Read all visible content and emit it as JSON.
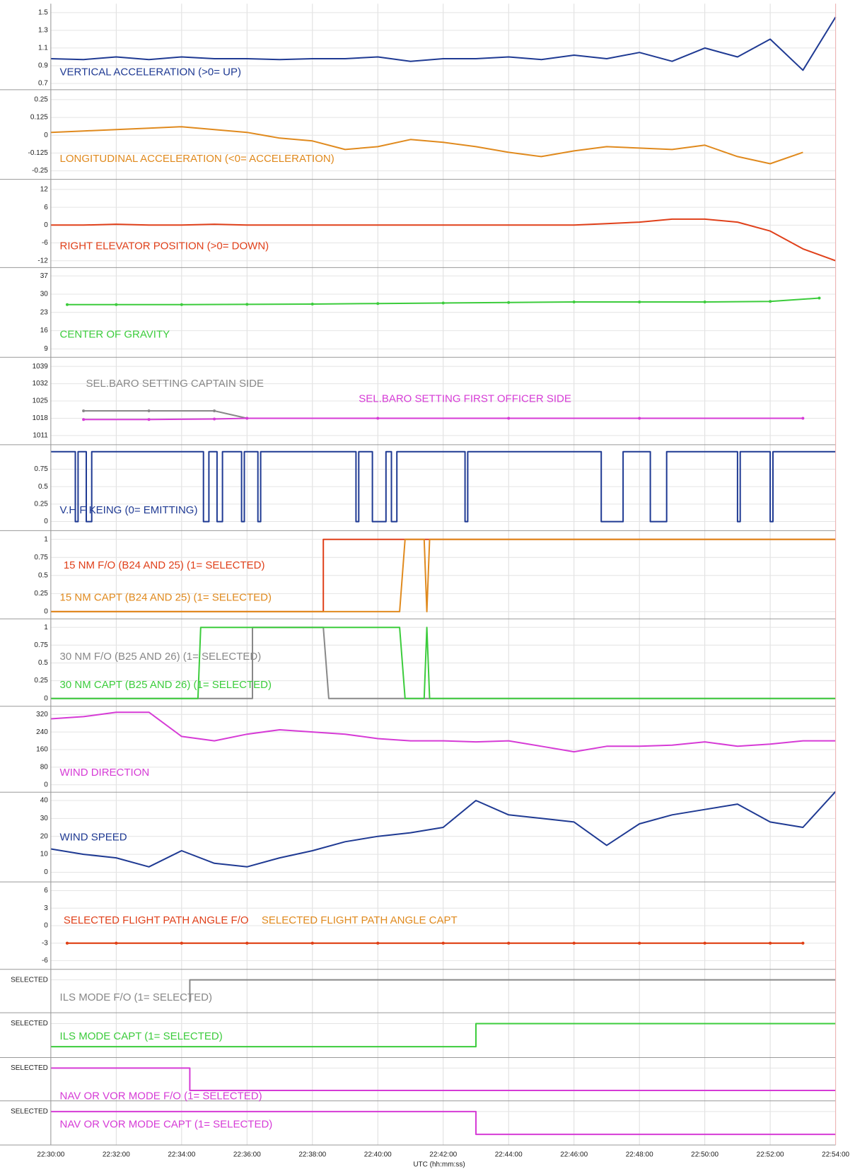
{
  "x_axis": {
    "label": "UTC (hh:mm:ss)",
    "xlim": [
      "22:30:00",
      "22:54:00"
    ],
    "xticks": [
      "22:30:00",
      "22:32:00",
      "22:34:00",
      "22:36:00",
      "22:38:00",
      "22:40:00",
      "22:42:00",
      "22:44:00",
      "22:46:00",
      "22:48:00",
      "22:50:00",
      "22:52:00",
      "22:54:00"
    ]
  },
  "chart_data": [
    {
      "type": "line",
      "ylim": [
        0.63,
        1.6
      ],
      "yticks": [
        0.7,
        0.9,
        1.1,
        1.3,
        1.5
      ],
      "grid": true,
      "x": [
        "22:30:00",
        "22:31:00",
        "22:32:00",
        "22:33:00",
        "22:34:00",
        "22:35:00",
        "22:36:00",
        "22:37:00",
        "22:38:00",
        "22:39:00",
        "22:40:00",
        "22:41:00",
        "22:42:00",
        "22:43:00",
        "22:44:00",
        "22:45:00",
        "22:46:00",
        "22:47:00",
        "22:48:00",
        "22:49:00",
        "22:50:00",
        "22:51:00",
        "22:52:00",
        "22:53:00",
        "22:54:00"
      ],
      "series": [
        {
          "name": "VERTICAL ACCELERATION (>0= UP)",
          "color": "#1f3a93",
          "values": [
            0.98,
            0.97,
            1.0,
            0.97,
            1.0,
            0.98,
            0.98,
            0.97,
            0.98,
            0.98,
            1.0,
            0.95,
            0.98,
            0.98,
            1.0,
            0.97,
            1.02,
            0.98,
            1.05,
            0.95,
            1.1,
            1.0,
            1.2,
            0.85,
            1.45
          ]
        }
      ]
    },
    {
      "type": "line",
      "ylim": [
        -0.31,
        0.32
      ],
      "yticks": [
        0.25,
        0.125,
        0,
        -0.125,
        -0.25
      ],
      "grid": true,
      "x": [
        "22:30:00",
        "22:31:00",
        "22:32:00",
        "22:33:00",
        "22:34:00",
        "22:35:00",
        "22:36:00",
        "22:37:00",
        "22:38:00",
        "22:39:00",
        "22:40:00",
        "22:41:00",
        "22:42:00",
        "22:43:00",
        "22:44:00",
        "22:45:00",
        "22:46:00",
        "22:47:00",
        "22:48:00",
        "22:49:00",
        "22:50:00",
        "22:51:00",
        "22:52:00",
        "22:53:00",
        "22:54:00"
      ],
      "series": [
        {
          "name": "LONGITUDINAL ACCELERATION (<0= ACCELERATION)",
          "color": "#e08a1e",
          "values": [
            0.02,
            0.03,
            0.04,
            0.05,
            0.06,
            0.04,
            0.02,
            -0.02,
            -0.04,
            -0.1,
            -0.08,
            -0.03,
            -0.05,
            -0.08,
            -0.12,
            -0.15,
            -0.11,
            -0.08,
            -0.09,
            -0.1,
            -0.07,
            -0.15,
            -0.2,
            -0.12,
            null
          ]
        }
      ]
    },
    {
      "type": "line",
      "ylim": [
        -14.3,
        15.4
      ],
      "yticks": [
        12,
        6,
        0,
        -6,
        -12
      ],
      "grid": true,
      "x": [
        "22:30:00",
        "22:31:00",
        "22:32:00",
        "22:33:00",
        "22:34:00",
        "22:35:00",
        "22:36:00",
        "22:37:00",
        "22:38:00",
        "22:39:00",
        "22:40:00",
        "22:41:00",
        "22:42:00",
        "22:43:00",
        "22:44:00",
        "22:45:00",
        "22:46:00",
        "22:47:00",
        "22:48:00",
        "22:49:00",
        "22:50:00",
        "22:51:00",
        "22:52:00",
        "22:53:00",
        "22:54:00"
      ],
      "series": [
        {
          "name": "RIGHT ELEVATOR POSITION (>0= DOWN)",
          "color": "#e0401a",
          "values": [
            0,
            0,
            0.3,
            0,
            0,
            0.3,
            0,
            0,
            0,
            0,
            0,
            0,
            0,
            0,
            0,
            0,
            0,
            0.5,
            1,
            2,
            2,
            1,
            -2,
            -8,
            -12
          ]
        }
      ]
    },
    {
      "type": "line",
      "markers": true,
      "ylim": [
        5.8,
        40.2
      ],
      "yticks": [
        37,
        30,
        23,
        16,
        9
      ],
      "grid": true,
      "x": [
        "22:30:30",
        "22:32:00",
        "22:34:00",
        "22:36:00",
        "22:38:00",
        "22:40:00",
        "22:42:00",
        "22:44:00",
        "22:46:00",
        "22:48:00",
        "22:50:00",
        "22:52:00",
        "22:53:30"
      ],
      "series": [
        {
          "name": "CENTER OF GRAVITY",
          "color": "#3ccc3c",
          "values": [
            26,
            26,
            26,
            26.1,
            26.2,
            26.4,
            26.6,
            26.8,
            27,
            27,
            27,
            27.2,
            28.5
          ]
        }
      ]
    },
    {
      "type": "line",
      "markers": true,
      "ylim": [
        1007.3,
        1042.7
      ],
      "yticks": [
        1039,
        1032,
        1025,
        1018,
        1011
      ],
      "grid": true,
      "x": [
        "22:31:00",
        "22:33:00",
        "22:35:00",
        "22:36:00",
        "22:40:00",
        "22:44:00",
        "22:48:00",
        "22:53:00"
      ],
      "series": [
        {
          "name": "SEL.BARO SETTING CAPTAIN SIDE",
          "color": "#888888",
          "values": [
            1021,
            1021,
            1021,
            1018,
            null,
            null,
            null,
            null
          ]
        },
        {
          "name": "SEL.BARO SETTING FIRST OFFICER SIDE",
          "color": "#d63bd6",
          "values": [
            1017.5,
            1017.5,
            1017.7,
            1018,
            1018,
            1018,
            1018,
            1018
          ]
        }
      ]
    },
    {
      "type": "line",
      "ylim": [
        -0.13,
        1.1
      ],
      "yticks": [
        0.75,
        0.5,
        0.25,
        0
      ],
      "grid": true,
      "x": [
        "22:30:00",
        "22:30:45",
        "22:30:45",
        "22:30:50",
        "22:30:50",
        "22:31:05",
        "22:31:05",
        "22:31:15",
        "22:31:15",
        "22:34:40",
        "22:34:40",
        "22:34:50",
        "22:34:50",
        "22:35:05",
        "22:35:05",
        "22:35:15",
        "22:35:15",
        "22:35:50",
        "22:35:50",
        "22:35:55",
        "22:35:55",
        "22:36:20",
        "22:36:20",
        "22:36:25",
        "22:36:25",
        "22:39:20",
        "22:39:20",
        "22:39:25",
        "22:39:25",
        "22:39:50",
        "22:39:50",
        "22:40:15",
        "22:40:15",
        "22:40:25",
        "22:40:25",
        "22:40:35",
        "22:40:35",
        "22:42:40",
        "22:42:40",
        "22:42:45",
        "22:42:45",
        "22:46:50",
        "22:46:50",
        "22:47:30",
        "22:47:30",
        "22:48:20",
        "22:48:20",
        "22:48:50",
        "22:48:50",
        "22:51:00",
        "22:51:00",
        "22:51:05",
        "22:51:05",
        "22:52:00",
        "22:52:00",
        "22:52:05",
        "22:52:05",
        "22:54:00"
      ],
      "series": [
        {
          "name": "V.H.F KEING (0= EMITTING)",
          "color": "#1f3a93",
          "values": [
            1,
            1,
            0,
            0,
            1,
            1,
            0,
            0,
            1,
            1,
            0,
            0,
            1,
            1,
            0,
            0,
            1,
            1,
            0,
            0,
            1,
            1,
            0,
            0,
            1,
            1,
            0,
            0,
            1,
            1,
            0,
            0,
            1,
            1,
            0,
            0,
            1,
            1,
            0,
            0,
            1,
            1,
            0,
            0,
            1,
            1,
            0,
            0,
            1,
            1,
            0,
            0,
            1,
            1,
            0,
            0,
            1,
            1
          ]
        }
      ]
    },
    {
      "type": "line",
      "ylim": [
        -0.1,
        1.12
      ],
      "yticks": [
        1,
        0.75,
        0.5,
        0.25,
        0
      ],
      "grid": true,
      "x": [
        "22:30:00",
        "22:38:20",
        "22:38:20",
        "22:40:40",
        "22:40:50",
        "22:41:25",
        "22:41:30",
        "22:41:35",
        "22:54:00"
      ],
      "series": [
        {
          "name": "15 NM F/O (B24 AND 25) (1= SELECTED)",
          "color": "#e0401a",
          "values": [
            0,
            0,
            1,
            1,
            1,
            1,
            1,
            1,
            1
          ]
        },
        {
          "name": "15 NM CAPT (B24 AND 25) (1= SELECTED)",
          "color": "#e08a1e",
          "values": [
            0,
            0,
            0,
            0,
            1,
            1,
            0,
            1,
            1
          ]
        }
      ]
    },
    {
      "type": "line",
      "ylim": [
        -0.11,
        1.12
      ],
      "yticks": [
        1,
        0.75,
        0.5,
        0.25,
        0
      ],
      "grid": true,
      "x": [
        "22:30:00",
        "22:34:30",
        "22:34:35",
        "22:36:10",
        "22:36:10",
        "22:38:20",
        "22:38:30",
        "22:40:40",
        "22:40:50",
        "22:41:25",
        "22:41:30",
        "22:41:35",
        "22:54:00"
      ],
      "series": [
        {
          "name": "30 NM F/O (B25 AND 26) (1= SELECTED)",
          "color": "#888888",
          "values": [
            0,
            0,
            0,
            0,
            1,
            1,
            0,
            0,
            0,
            0,
            0,
            0,
            0
          ]
        },
        {
          "name": "30 NM CAPT (B25 AND 26) (1= SELECTED)",
          "color": "#3ccc3c",
          "values": [
            0,
            0,
            1,
            1,
            1,
            1,
            1,
            1,
            0,
            0,
            1,
            0,
            0
          ]
        }
      ]
    },
    {
      "type": "line",
      "ylim": [
        -34,
        357
      ],
      "yticks": [
        320,
        240,
        160,
        80,
        0
      ],
      "grid": true,
      "x": [
        "22:30:00",
        "22:31:00",
        "22:32:00",
        "22:33:00",
        "22:34:00",
        "22:35:00",
        "22:36:00",
        "22:37:00",
        "22:38:00",
        "22:39:00",
        "22:40:00",
        "22:41:00",
        "22:42:00",
        "22:43:00",
        "22:44:00",
        "22:45:00",
        "22:46:00",
        "22:47:00",
        "22:48:00",
        "22:49:00",
        "22:50:00",
        "22:51:00",
        "22:52:00",
        "22:53:00",
        "22:54:00"
      ],
      "series": [
        {
          "name": "WIND DIRECTION",
          "color": "#d63bd6",
          "values": [
            300,
            310,
            330,
            330,
            220,
            200,
            230,
            250,
            240,
            230,
            210,
            200,
            200,
            195,
            200,
            175,
            150,
            175,
            175,
            180,
            195,
            175,
            185,
            200,
            200
          ]
        }
      ]
    },
    {
      "type": "line",
      "ylim": [
        -5.4,
        44.6
      ],
      "yticks": [
        40,
        30,
        20,
        10,
        0
      ],
      "grid": true,
      "x": [
        "22:30:00",
        "22:31:00",
        "22:32:00",
        "22:33:00",
        "22:34:00",
        "22:35:00",
        "22:36:00",
        "22:37:00",
        "22:38:00",
        "22:39:00",
        "22:40:00",
        "22:41:00",
        "22:42:00",
        "22:43:00",
        "22:44:00",
        "22:45:00",
        "22:46:00",
        "22:47:00",
        "22:48:00",
        "22:49:00",
        "22:50:00",
        "22:51:00",
        "22:52:00",
        "22:53:00",
        "22:54:00"
      ],
      "series": [
        {
          "name": "WIND SPEED",
          "color": "#1f3a93",
          "values": [
            13,
            10,
            8,
            3,
            12,
            5,
            3,
            8,
            12,
            17,
            20,
            22,
            25,
            40,
            32,
            30,
            28,
            15,
            27,
            32,
            35,
            38,
            28,
            25,
            45
          ]
        }
      ]
    },
    {
      "type": "line",
      "markers": true,
      "ylim": [
        -7.5,
        7.5
      ],
      "yticks": [
        6,
        3,
        0,
        -3,
        -6
      ],
      "grid": true,
      "x": [
        "22:30:30",
        "22:32:00",
        "22:34:00",
        "22:36:00",
        "22:38:00",
        "22:40:00",
        "22:42:00",
        "22:44:00",
        "22:46:00",
        "22:48:00",
        "22:50:00",
        "22:52:00",
        "22:53:00"
      ],
      "series": [
        {
          "name": "SELECTED FLIGHT PATH ANGLE CAPT",
          "color": "#e08a1e",
          "values": [
            -3,
            -3,
            -3,
            -3,
            -3,
            -3,
            -3,
            -3,
            -3,
            -3,
            -3,
            -3,
            -3
          ]
        },
        {
          "name": "SELECTED FLIGHT PATH ANGLE F/O",
          "color": "#e0401a",
          "values": [
            -3,
            -3,
            -3,
            -3,
            -3,
            -3,
            -3,
            -3,
            -3,
            -3,
            -3,
            -3,
            -3
          ]
        }
      ]
    },
    {
      "type": "line",
      "ylim": [
        -0.47,
        1.47
      ],
      "yticks": [
        {
          "value": 1,
          "label": "SELECTED"
        }
      ],
      "grid": true,
      "x": [
        "22:34:15",
        "22:34:15",
        "22:54:00"
      ],
      "series": [
        {
          "name": "ILS MODE F/O (1= SELECTED)",
          "color": "#888888",
          "values": [
            0,
            1,
            1
          ]
        }
      ]
    },
    {
      "type": "line",
      "ylim": [
        -0.47,
        1.47
      ],
      "yticks": [
        {
          "value": 1,
          "label": "SELECTED"
        }
      ],
      "grid": true,
      "x": [
        "22:30:00",
        "22:43:00",
        "22:43:00",
        "22:54:00"
      ],
      "series": [
        {
          "name": "ILS MODE CAPT (1= SELECTED)",
          "color": "#3ccc3c",
          "values": [
            0,
            0,
            1,
            1
          ]
        }
      ]
    },
    {
      "type": "line",
      "ylim": [
        -0.47,
        1.47
      ],
      "yticks": [
        {
          "value": 1,
          "label": "SELECTED"
        }
      ],
      "grid": true,
      "x": [
        "22:30:00",
        "22:34:15",
        "22:34:15",
        "22:54:00"
      ],
      "series": [
        {
          "name": "NAV OR VOR MODE F/O (1= SELECTED)",
          "color": "#d63bd6",
          "values": [
            1,
            1,
            0,
            0
          ]
        }
      ]
    },
    {
      "type": "line",
      "ylim": [
        -0.47,
        1.47
      ],
      "yticks": [
        {
          "value": 1,
          "label": "SELECTED"
        }
      ],
      "grid": true,
      "x": [
        "22:30:00",
        "22:43:00",
        "22:43:00",
        "22:54:00"
      ],
      "series": [
        {
          "name": "NAV OR VOR MODE CAPT (1= SELECTED)",
          "color": "#d63bd6",
          "values": [
            1,
            1,
            0,
            0
          ]
        }
      ]
    }
  ]
}
